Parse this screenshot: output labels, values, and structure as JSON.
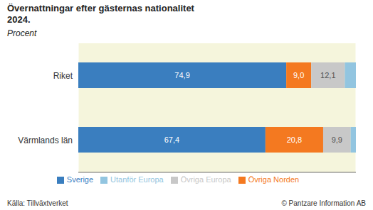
{
  "chart_data": {
    "type": "bar",
    "title": "Övernattningar efter gästernas nationalitet\n2024.",
    "subtitle": "Procent",
    "annotations": [
      "Källa: Tillväxtverket",
      "© Pantzare Information AB"
    ],
    "categories": [
      "Riket",
      "Värmlands län"
    ],
    "series": [
      {
        "name": "Sverige",
        "color": "#3A7EBF",
        "values": [
          74.9,
          67.4
        ],
        "value_labels": [
          "74,9",
          "67,4"
        ]
      },
      {
        "name": "Övriga Norden",
        "color": "#F47920",
        "values": [
          9.0,
          20.8
        ],
        "value_labels": [
          "9,0",
          "20,8"
        ]
      },
      {
        "name": "Övriga Europa",
        "color": "#C8C8C8",
        "values": [
          12.1,
          9.9
        ],
        "value_labels": [
          "12,1",
          "9,9"
        ]
      },
      {
        "name": "Utanför Europa",
        "color": "#92C5E0",
        "values": [
          4.0,
          1.9
        ]
      }
    ],
    "xlim": [
      0,
      100
    ],
    "xticks": [
      20,
      40,
      60,
      80
    ],
    "orientation": "horizontal",
    "stacked": true,
    "data_labels": true,
    "grid": true,
    "legend": "bottom",
    "tick_labels": "y"
  }
}
